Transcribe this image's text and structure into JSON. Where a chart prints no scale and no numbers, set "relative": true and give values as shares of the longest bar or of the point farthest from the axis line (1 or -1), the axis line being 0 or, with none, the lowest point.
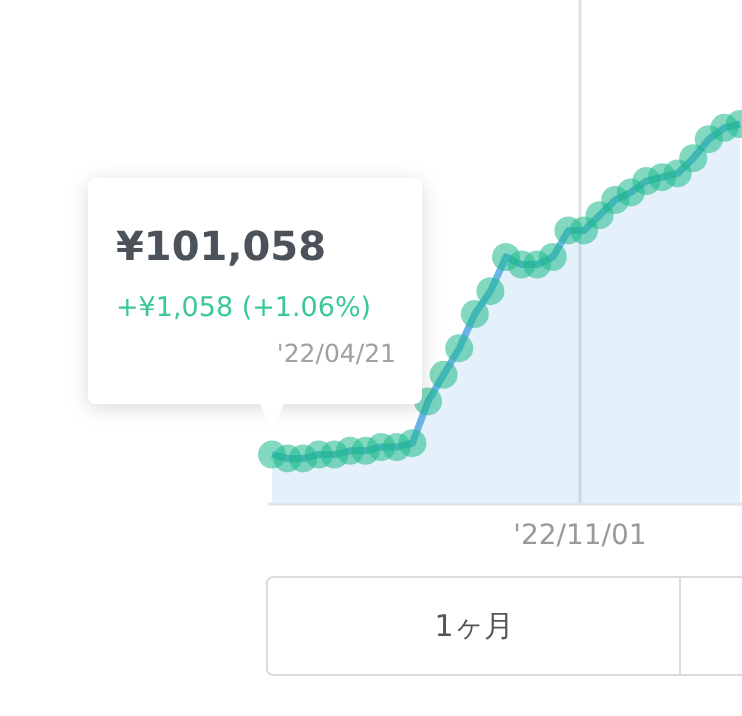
{
  "chart_data": {
    "type": "area",
    "relative": true,
    "categories": [
      null,
      null,
      null,
      null,
      null,
      null,
      null,
      null,
      null,
      null,
      null,
      null,
      null,
      null,
      null,
      null,
      null,
      null,
      null,
      null,
      null,
      null,
      null,
      null,
      null,
      null,
      null,
      null,
      null,
      null,
      null
    ],
    "series": [
      {
        "color": "#6cb4e4",
        "colors": [
          "#1db98c",
          "#1db98c",
          "#1db98c",
          "#1db98c",
          "#1db98c",
          "#1db98c",
          "#1db98c",
          "#1db98c",
          "#1db98c",
          "#1db98c",
          "#1db98c",
          "#1db98c",
          "#1db98c",
          "#1db98c",
          "#1db98c",
          "#1db98c",
          "#1db98c",
          "#1db98c",
          "#1db98c",
          "#1db98c",
          "#1db98c",
          "#1db98c",
          "#1db98c",
          "#1db98c",
          "#1db98c",
          "#1db98c",
          "#1db98c",
          "#1db98c",
          "#1db98c",
          "#1db98c",
          "#1db98c"
        ],
        "values": [
          0.13,
          0.12,
          0.12,
          0.13,
          0.13,
          0.14,
          0.14,
          0.15,
          0.15,
          0.16,
          0.27,
          0.34,
          0.41,
          0.5,
          0.56,
          0.65,
          0.63,
          0.63,
          0.65,
          0.72,
          0.72,
          0.76,
          0.8,
          0.82,
          0.85,
          0.86,
          0.87,
          0.91,
          0.96,
          0.99,
          1
        ]
      }
    ],
    "marker": "circle",
    "annotations": [
      "¥101,058",
      "+¥1,058 (+1.06%)",
      "'22/04/21",
      "'22/11/01",
      "1ヶ月"
    ]
  }
}
